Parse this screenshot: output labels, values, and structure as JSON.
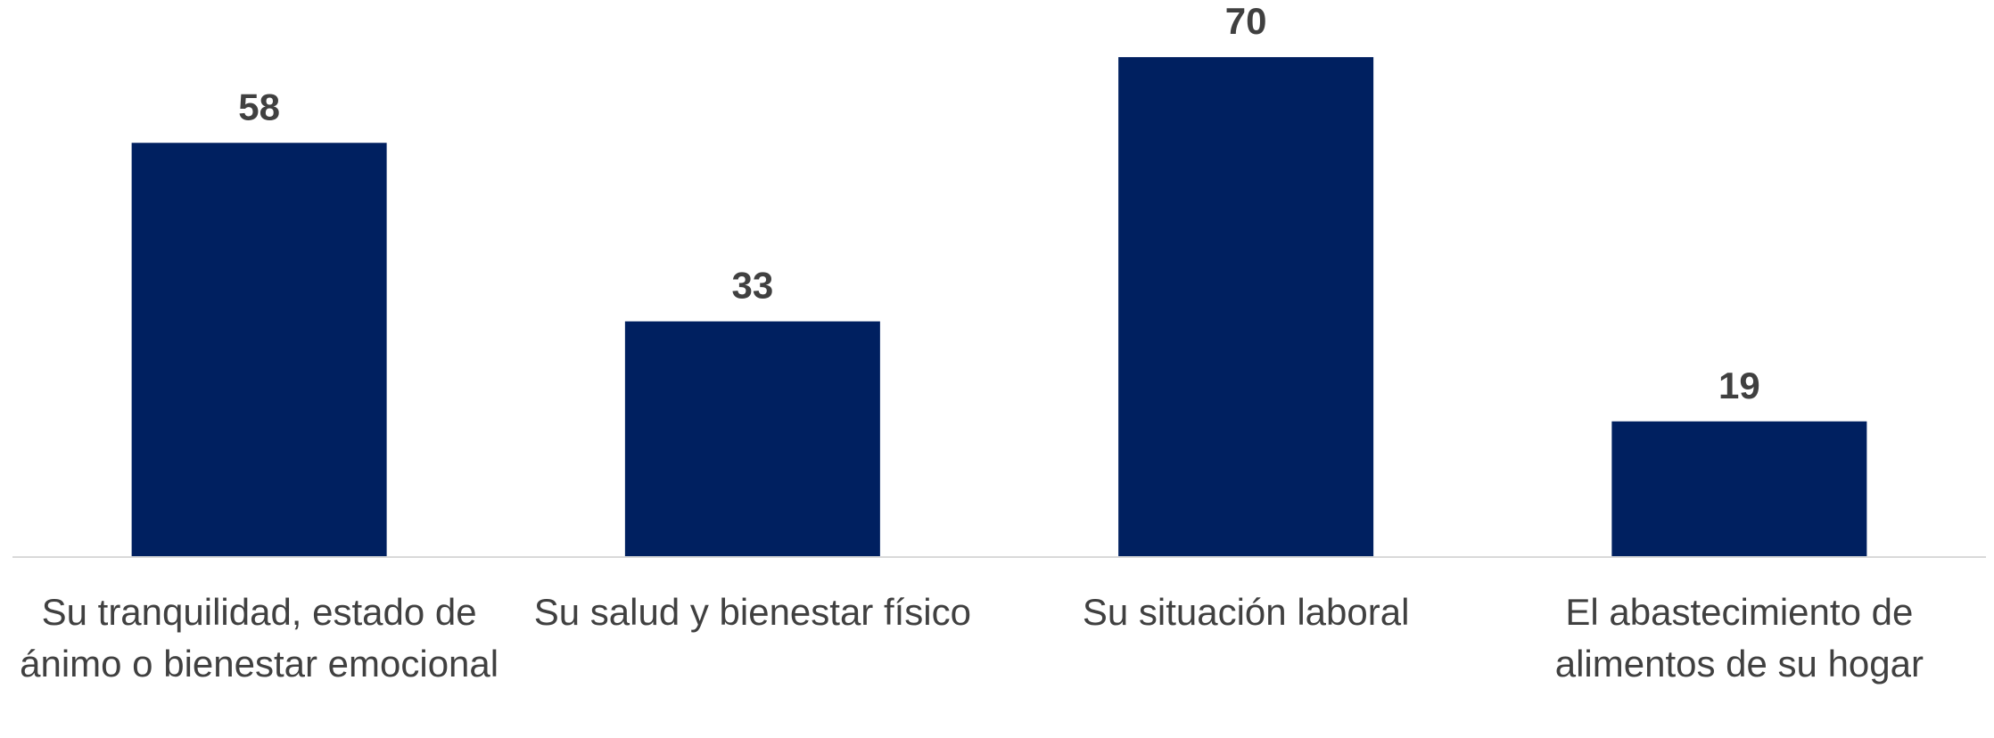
{
  "chart_data": {
    "type": "bar",
    "categories": [
      "Su tranquilidad, estado de ánimo o bienestar emocional",
      "Su salud y bienestar físico",
      "Su situación laboral",
      "El abastecimiento de alimentos de su hogar"
    ],
    "values": [
      58,
      33,
      70,
      19
    ],
    "color": "#002060",
    "ylim": [
      0,
      78
    ]
  }
}
